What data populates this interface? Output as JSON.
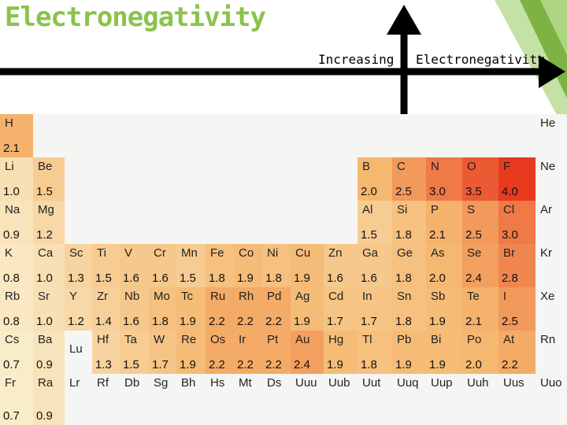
{
  "title": "Electronegativity",
  "arrow": {
    "left_label": "Increasing",
    "right_label": "Electronegativity"
  },
  "colors": {
    "title": "#8bc34a",
    "low": "#f9ecc8",
    "mid": "#f5b870",
    "high": "#e83a1e",
    "blank": "#f5f5f3"
  },
  "elements": [
    {
      "s": "H",
      "v": "2.1",
      "r": 0,
      "c": 0
    },
    {
      "s": "He",
      "v": "",
      "r": 0,
      "c": 17
    },
    {
      "s": "Li",
      "v": "1.0",
      "r": 1,
      "c": 0
    },
    {
      "s": "Be",
      "v": "1.5",
      "r": 1,
      "c": 1
    },
    {
      "s": "B",
      "v": "2.0",
      "r": 1,
      "c": 12
    },
    {
      "s": "C",
      "v": "2.5",
      "r": 1,
      "c": 13
    },
    {
      "s": "N",
      "v": "3.0",
      "r": 1,
      "c": 14
    },
    {
      "s": "O",
      "v": "3.5",
      "r": 1,
      "c": 15
    },
    {
      "s": "F",
      "v": "4.0",
      "r": 1,
      "c": 16
    },
    {
      "s": "Ne",
      "v": "",
      "r": 1,
      "c": 17
    },
    {
      "s": "Na",
      "v": "0.9",
      "r": 2,
      "c": 0
    },
    {
      "s": "Mg",
      "v": "1.2",
      "r": 2,
      "c": 1
    },
    {
      "s": "Al",
      "v": "1.5",
      "r": 2,
      "c": 12
    },
    {
      "s": "Si",
      "v": "1.8",
      "r": 2,
      "c": 13
    },
    {
      "s": "P",
      "v": "2.1",
      "r": 2,
      "c": 14
    },
    {
      "s": "S",
      "v": "2.5",
      "r": 2,
      "c": 15
    },
    {
      "s": "Cl",
      "v": "3.0",
      "r": 2,
      "c": 16
    },
    {
      "s": "Ar",
      "v": "",
      "r": 2,
      "c": 17
    },
    {
      "s": "K",
      "v": "0.8",
      "r": 3,
      "c": 0
    },
    {
      "s": "Ca",
      "v": "1.0",
      "r": 3,
      "c": 1
    },
    {
      "s": "Sc",
      "v": "1.3",
      "r": 3,
      "c": 2
    },
    {
      "s": "Ti",
      "v": "1.5",
      "r": 3,
      "c": 3
    },
    {
      "s": "V",
      "v": "1.6",
      "r": 3,
      "c": 4
    },
    {
      "s": "Cr",
      "v": "1.6",
      "r": 3,
      "c": 5
    },
    {
      "s": "Mn",
      "v": "1.5",
      "r": 3,
      "c": 6
    },
    {
      "s": "Fe",
      "v": "1.8",
      "r": 3,
      "c": 7
    },
    {
      "s": "Co",
      "v": "1.9",
      "r": 3,
      "c": 8
    },
    {
      "s": "Ni",
      "v": "1.8",
      "r": 3,
      "c": 9
    },
    {
      "s": "Cu",
      "v": "1.9",
      "r": 3,
      "c": 10
    },
    {
      "s": "Zn",
      "v": "1.6",
      "r": 3,
      "c": 11
    },
    {
      "s": "Ga",
      "v": "1.6",
      "r": 3,
      "c": 12
    },
    {
      "s": "Ge",
      "v": "1.8",
      "r": 3,
      "c": 13
    },
    {
      "s": "As",
      "v": "2.0",
      "r": 3,
      "c": 14
    },
    {
      "s": "Se",
      "v": "2.4",
      "r": 3,
      "c": 15
    },
    {
      "s": "Br",
      "v": "2.8",
      "r": 3,
      "c": 16
    },
    {
      "s": "Kr",
      "v": "",
      "r": 3,
      "c": 17
    },
    {
      "s": "Rb",
      "v": "0.8",
      "r": 4,
      "c": 0
    },
    {
      "s": "Sr",
      "v": "1.0",
      "r": 4,
      "c": 1
    },
    {
      "s": "Y",
      "v": "1.2",
      "r": 4,
      "c": 2
    },
    {
      "s": "Zr",
      "v": "1.4",
      "r": 4,
      "c": 3
    },
    {
      "s": "Nb",
      "v": "1.6",
      "r": 4,
      "c": 4
    },
    {
      "s": "Mo",
      "v": "1.8",
      "r": 4,
      "c": 5
    },
    {
      "s": "Tc",
      "v": "1.9",
      "r": 4,
      "c": 6
    },
    {
      "s": "Ru",
      "v": "2.2",
      "r": 4,
      "c": 7
    },
    {
      "s": "Rh",
      "v": "2.2",
      "r": 4,
      "c": 8
    },
    {
      "s": "Pd",
      "v": "2.2",
      "r": 4,
      "c": 9
    },
    {
      "s": "Ag",
      "v": "1.9",
      "r": 4,
      "c": 10
    },
    {
      "s": "Cd",
      "v": "1.7",
      "r": 4,
      "c": 11
    },
    {
      "s": "In",
      "v": "1.7",
      "r": 4,
      "c": 12
    },
    {
      "s": "Sn",
      "v": "1.8",
      "r": 4,
      "c": 13
    },
    {
      "s": "Sb",
      "v": "1.9",
      "r": 4,
      "c": 14
    },
    {
      "s": "Te",
      "v": "2.1",
      "r": 4,
      "c": 15
    },
    {
      "s": "I",
      "v": "2.5",
      "r": 4,
      "c": 16
    },
    {
      "s": "Xe",
      "v": "",
      "r": 4,
      "c": 17
    },
    {
      "s": "Cs",
      "v": "0.7",
      "r": 5,
      "c": 0
    },
    {
      "s": "Ba",
      "v": "0.9",
      "r": 5,
      "c": 1
    },
    {
      "s": "Lu",
      "v": "",
      "r": 5,
      "c": 2,
      "lu": true
    },
    {
      "s": "Hf",
      "v": "1.3",
      "r": 5,
      "c": 3
    },
    {
      "s": "Ta",
      "v": "1.5",
      "r": 5,
      "c": 4
    },
    {
      "s": "W",
      "v": "1.7",
      "r": 5,
      "c": 5
    },
    {
      "s": "Re",
      "v": "1.9",
      "r": 5,
      "c": 6
    },
    {
      "s": "Os",
      "v": "2.2",
      "r": 5,
      "c": 7
    },
    {
      "s": "Ir",
      "v": "2.2",
      "r": 5,
      "c": 8
    },
    {
      "s": "Pt",
      "v": "2.2",
      "r": 5,
      "c": 9
    },
    {
      "s": "Au",
      "v": "2.4",
      "r": 5,
      "c": 10
    },
    {
      "s": "Hg",
      "v": "1.9",
      "r": 5,
      "c": 11
    },
    {
      "s": "Tl",
      "v": "1.8",
      "r": 5,
      "c": 12
    },
    {
      "s": "Pb",
      "v": "1.9",
      "r": 5,
      "c": 13
    },
    {
      "s": "Bi",
      "v": "1.9",
      "r": 5,
      "c": 14
    },
    {
      "s": "Po",
      "v": "2.0",
      "r": 5,
      "c": 15
    },
    {
      "s": "At",
      "v": "2.2",
      "r": 5,
      "c": 16
    },
    {
      "s": "Rn",
      "v": "",
      "r": 5,
      "c": 17
    },
    {
      "s": "Fr",
      "v": "0.7",
      "r": 6,
      "c": 0
    },
    {
      "s": "Ra",
      "v": "0.9",
      "r": 6,
      "c": 1
    },
    {
      "s": "Lr",
      "v": "",
      "r": 6,
      "c": 2
    },
    {
      "s": "Rf",
      "v": "",
      "r": 6,
      "c": 3
    },
    {
      "s": "Db",
      "v": "",
      "r": 6,
      "c": 4
    },
    {
      "s": "Sg",
      "v": "",
      "r": 6,
      "c": 5
    },
    {
      "s": "Bh",
      "v": "",
      "r": 6,
      "c": 6
    },
    {
      "s": "Hs",
      "v": "",
      "r": 6,
      "c": 7
    },
    {
      "s": "Mt",
      "v": "",
      "r": 6,
      "c": 8
    },
    {
      "s": "Ds",
      "v": "",
      "r": 6,
      "c": 9
    },
    {
      "s": "Uuu",
      "v": "",
      "r": 6,
      "c": 10
    },
    {
      "s": "Uub",
      "v": "",
      "r": 6,
      "c": 11
    },
    {
      "s": "Uut",
      "v": "",
      "r": 6,
      "c": 12
    },
    {
      "s": "Uuq",
      "v": "",
      "r": 6,
      "c": 13
    },
    {
      "s": "Uup",
      "v": "",
      "r": 6,
      "c": 14
    },
    {
      "s": "Uuh",
      "v": "",
      "r": 6,
      "c": 15
    },
    {
      "s": "Uus",
      "v": "",
      "r": 6,
      "c": 16
    },
    {
      "s": "Uuo",
      "v": "",
      "r": 6,
      "c": 17
    }
  ]
}
